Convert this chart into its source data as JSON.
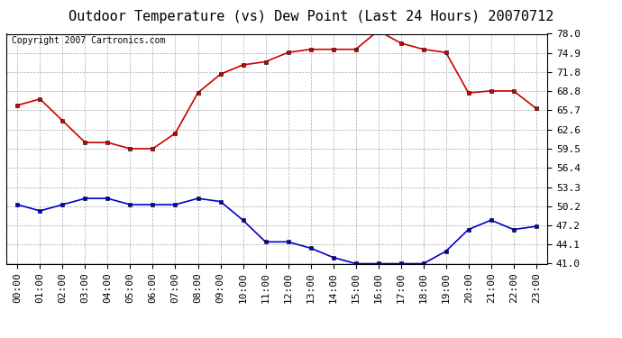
{
  "title": "Outdoor Temperature (vs) Dew Point (Last 24 Hours) 20070712",
  "copyright": "Copyright 2007 Cartronics.com",
  "hours": [
    "00:00",
    "01:00",
    "02:00",
    "03:00",
    "04:00",
    "05:00",
    "06:00",
    "07:00",
    "08:00",
    "09:00",
    "10:00",
    "11:00",
    "12:00",
    "13:00",
    "14:00",
    "15:00",
    "16:00",
    "17:00",
    "18:00",
    "19:00",
    "20:00",
    "21:00",
    "22:00",
    "23:00"
  ],
  "temp": [
    66.5,
    67.5,
    64.0,
    60.5,
    60.5,
    59.5,
    59.5,
    62.0,
    68.5,
    71.5,
    73.0,
    73.5,
    75.0,
    75.5,
    75.5,
    75.5,
    78.5,
    76.5,
    75.5,
    75.0,
    68.5,
    68.8,
    68.8,
    66.0
  ],
  "dew": [
    50.5,
    49.5,
    50.5,
    51.5,
    51.5,
    50.5,
    50.5,
    50.5,
    51.5,
    51.0,
    48.0,
    44.5,
    44.5,
    43.5,
    42.0,
    41.0,
    41.0,
    41.0,
    41.0,
    43.0,
    46.5,
    48.0,
    46.5,
    47.0
  ],
  "temp_color": "#cc0000",
  "dew_color": "#0000cc",
  "bg_color": "#ffffff",
  "plot_bg_color": "#ffffff",
  "grid_color": "#aaaaaa",
  "y_ticks": [
    41.0,
    44.1,
    47.2,
    50.2,
    53.3,
    56.4,
    59.5,
    62.6,
    65.7,
    68.8,
    71.8,
    74.9,
    78.0
  ],
  "ylim": [
    41.0,
    78.0
  ],
  "title_fontsize": 11,
  "copyright_fontsize": 7,
  "tick_fontsize": 8,
  "marker": "s",
  "marker_size": 2.5,
  "linewidth": 1.2
}
